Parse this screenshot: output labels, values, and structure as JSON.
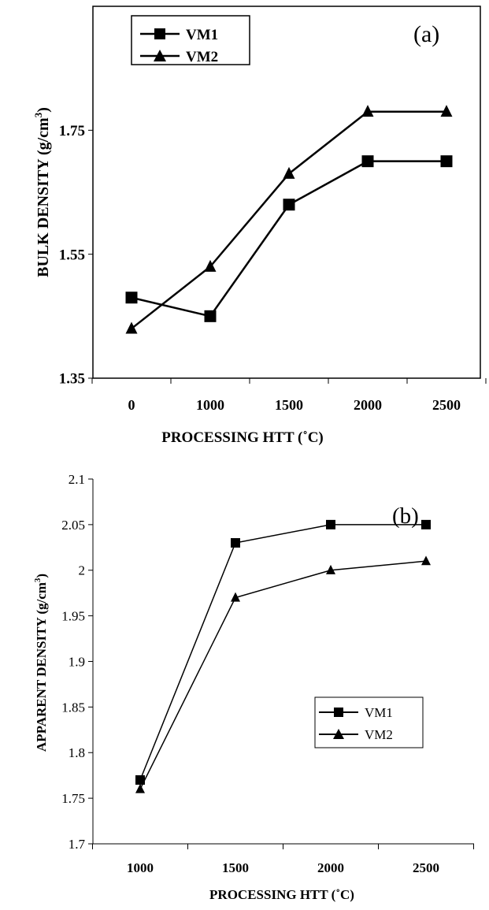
{
  "chart_data": [
    {
      "type": "line",
      "panel_label": "(a)",
      "categories": [
        "0",
        "1000",
        "1500",
        "2000",
        "2500"
      ],
      "series": [
        {
          "name": "VM1",
          "marker": "square",
          "values": [
            1.48,
            1.45,
            1.63,
            1.7,
            1.7
          ]
        },
        {
          "name": "VM2",
          "marker": "triangle",
          "values": [
            1.43,
            1.53,
            1.68,
            1.78,
            1.78
          ]
        }
      ],
      "xlabel": "PROCESSING HTT (˚C)",
      "ylabel": "BULK DENSITY (g/cm",
      "ylabel_sup": "3",
      "ylabel_close": ")",
      "ylim": [
        1.35,
        1.95
      ],
      "yticks": [
        1.35,
        1.55,
        1.75
      ],
      "ytick_labels": [
        "1.35",
        "1.55",
        "1.75"
      ],
      "legend_position": "top-left",
      "grid": false
    },
    {
      "type": "line",
      "panel_label": "(b)",
      "categories": [
        "1000",
        "1500",
        "2000",
        "2500"
      ],
      "series": [
        {
          "name": "VM1",
          "marker": "square",
          "values": [
            1.77,
            2.03,
            2.05,
            2.05
          ]
        },
        {
          "name": "VM2",
          "marker": "triangle",
          "values": [
            1.76,
            1.97,
            2.0,
            2.01
          ]
        }
      ],
      "xlabel": "PROCESSING HTT (˚C)",
      "ylabel": "APPARENT DENSITY (g/cm",
      "ylabel_sup": "3",
      "ylabel_close": ")",
      "ylim": [
        1.7,
        2.1
      ],
      "yticks": [
        1.7,
        1.75,
        1.8,
        1.85,
        1.9,
        1.95,
        2.0,
        2.05,
        2.1
      ],
      "ytick_labels": [
        "1.7",
        "1.75",
        "1.8",
        "1.85",
        "1.9",
        "1.95",
        "2",
        "2.05",
        "2.1"
      ],
      "legend_position": "center-right",
      "grid": false
    }
  ]
}
